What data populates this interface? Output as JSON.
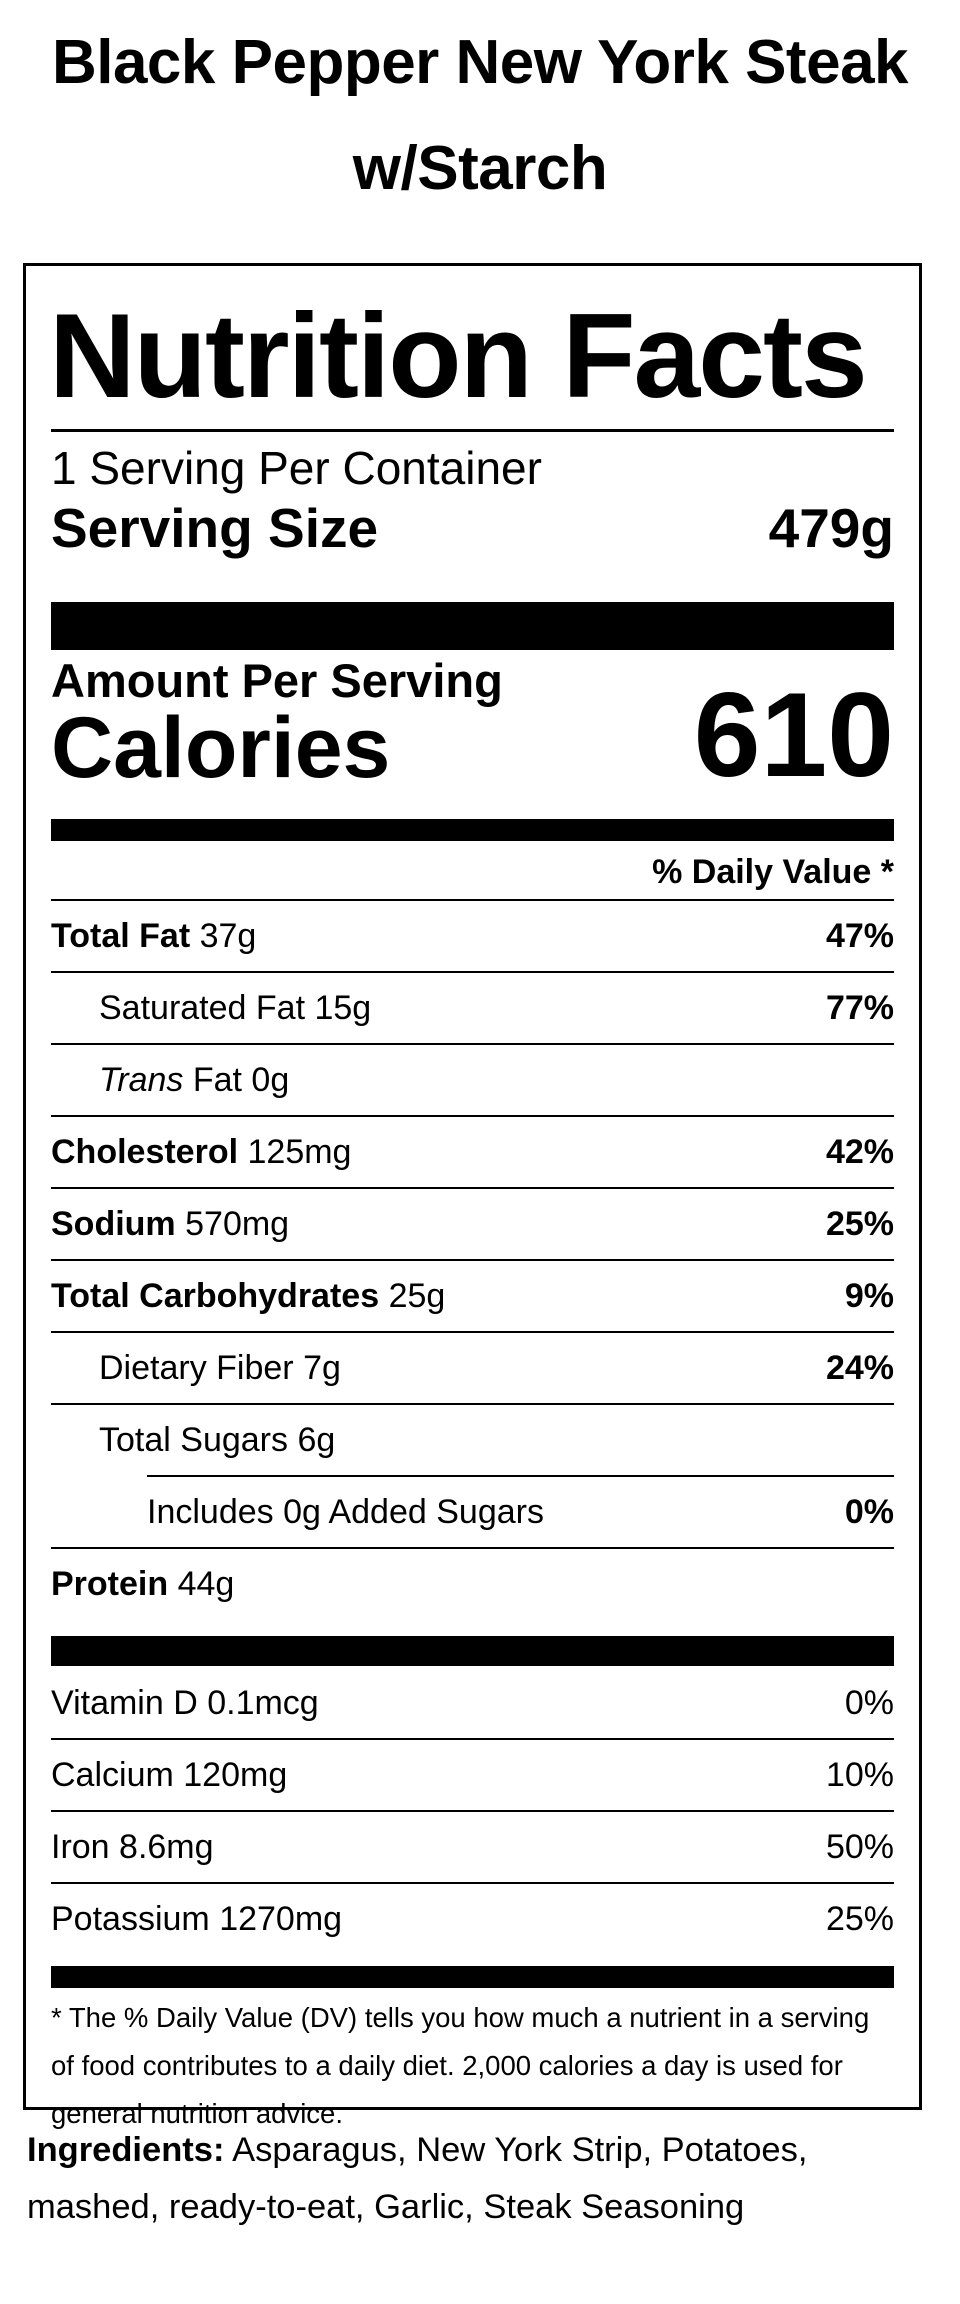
{
  "product": {
    "title_line1": "Black Pepper New York Steak",
    "title_line2": "w/Starch"
  },
  "label": {
    "heading": "Nutrition Facts",
    "servings_per_container": "1 Serving Per Container",
    "serving_size_label": "Serving Size",
    "serving_size_value": "479g",
    "amount_per_serving": "Amount Per Serving",
    "calories_label": "Calories",
    "calories_value": "610",
    "daily_value_header": "% Daily Value *",
    "nutrients": [
      {
        "name": "Total Fat",
        "amount": "37g",
        "dv": "47%"
      },
      {
        "name": "Saturated Fat",
        "amount": "15g",
        "dv": "77%"
      },
      {
        "name_italic": "Trans",
        "name": "Fat",
        "amount": "0g",
        "dv": ""
      },
      {
        "name": "Cholesterol",
        "amount": "125mg",
        "dv": "42%"
      },
      {
        "name": "Sodium",
        "amount": "570mg",
        "dv": "25%"
      },
      {
        "name": "Total Carbohydrates",
        "amount": "25g",
        "dv": "9%"
      },
      {
        "name": "Dietary Fiber",
        "amount": "7g",
        "dv": "24%"
      },
      {
        "name": "Total Sugars",
        "amount": "6g",
        "dv": ""
      },
      {
        "name": "Includes 0g Added Sugars",
        "amount": "",
        "dv": "0%"
      },
      {
        "name": "Protein",
        "amount": "44g",
        "dv": ""
      }
    ],
    "vitamins": [
      {
        "name": "Vitamin D",
        "amount": "0.1mcg",
        "dv": "0%"
      },
      {
        "name": "Calcium",
        "amount": "120mg",
        "dv": "10%"
      },
      {
        "name": "Iron",
        "amount": "8.6mg",
        "dv": "50%"
      },
      {
        "name": "Potassium",
        "amount": "1270mg",
        "dv": "25%"
      }
    ],
    "footnote": "* The % Daily Value (DV) tells you how much a nutrient in a serving of food contributes to a daily diet. 2,000 calories a day is used for general nutrition advice."
  },
  "ingredients": {
    "label": "Ingredients:",
    "text": "Asparagus, New York Strip, Potatoes, mashed, ready-to-eat, Garlic, Steak Seasoning"
  }
}
